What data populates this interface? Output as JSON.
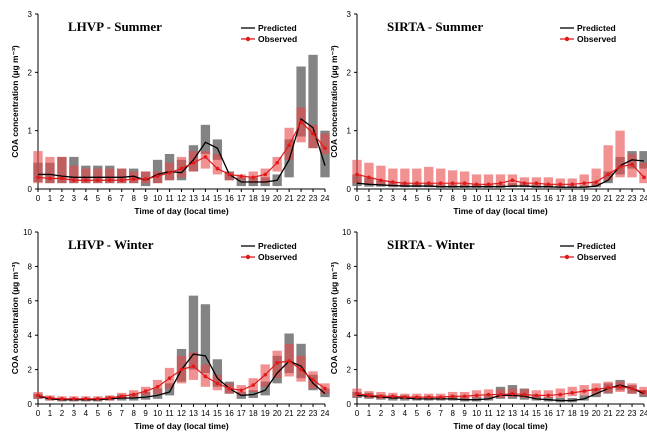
{
  "chart_data": [
    {
      "type": "line",
      "title": "LHVP - Summer",
      "xlabel": "Time of day (local time)",
      "ylabel": "COA concentration (µg m⁻³)",
      "x_ticks": [
        "0",
        "1",
        "2",
        "3",
        "4",
        "5",
        "6",
        "7",
        "8",
        "9",
        "10",
        "11",
        "12",
        "13",
        "14",
        "15",
        "16",
        "17",
        "18",
        "19",
        "20",
        "21",
        "22",
        "23",
        "24"
      ],
      "y_ticks": [
        "0",
        "1",
        "2",
        "3"
      ],
      "ylim": [
        0,
        3
      ],
      "xlim": [
        0,
        24
      ],
      "legend": [
        "Predicted",
        "Observed"
      ],
      "legend_position": "top-right",
      "series": [
        {
          "name": "Predicted",
          "color": "#000000",
          "values": [
            0.25,
            0.25,
            0.22,
            0.2,
            0.2,
            0.2,
            0.2,
            0.2,
            0.22,
            0.15,
            0.25,
            0.3,
            0.28,
            0.5,
            0.8,
            0.7,
            0.25,
            0.12,
            0.12,
            0.12,
            0.15,
            0.5,
            1.2,
            1.05,
            0.4
          ],
          "lower": [
            0.12,
            0.1,
            0.1,
            0.1,
            0.1,
            0.1,
            0.1,
            0.1,
            0.1,
            0.05,
            0.1,
            0.15,
            0.15,
            0.3,
            0.6,
            0.5,
            0.15,
            0.05,
            0.05,
            0.05,
            0.05,
            0.2,
            0.9,
            0.7,
            0.2
          ],
          "upper": [
            0.45,
            0.45,
            0.55,
            0.55,
            0.4,
            0.4,
            0.4,
            0.35,
            0.35,
            0.3,
            0.5,
            0.6,
            0.5,
            0.75,
            1.1,
            0.85,
            0.3,
            0.2,
            0.2,
            0.2,
            0.25,
            0.85,
            2.1,
            2.3,
            1.0
          ]
        },
        {
          "name": "Observed",
          "color": "#e0191b",
          "values": [
            0.2,
            0.18,
            0.18,
            0.15,
            0.15,
            0.15,
            0.15,
            0.15,
            0.17,
            0.17,
            0.22,
            0.28,
            0.35,
            0.45,
            0.55,
            0.35,
            0.25,
            0.22,
            0.2,
            0.25,
            0.45,
            0.75,
            1.15,
            0.95,
            0.7
          ],
          "lower": [
            0.1,
            0.1,
            0.1,
            0.1,
            0.1,
            0.1,
            0.1,
            0.1,
            0.1,
            0.1,
            0.1,
            0.15,
            0.2,
            0.3,
            0.35,
            0.25,
            0.15,
            0.15,
            0.1,
            0.1,
            0.3,
            0.5,
            0.8,
            0.7,
            0.6
          ],
          "upper": [
            0.65,
            0.55,
            0.55,
            0.4,
            0.35,
            0.35,
            0.35,
            0.35,
            0.3,
            0.3,
            0.3,
            0.45,
            0.55,
            0.65,
            0.65,
            0.6,
            0.3,
            0.25,
            0.3,
            0.35,
            0.55,
            1.05,
            1.4,
            1.1,
            0.95
          ]
        }
      ]
    },
    {
      "type": "line",
      "title": "SIRTA - Summer",
      "xlabel": "Time of day (local time)",
      "ylabel": "COA concentration (µg m⁻³)",
      "x_ticks": [
        "0",
        "1",
        "2",
        "3",
        "4",
        "5",
        "6",
        "7",
        "8",
        "9",
        "10",
        "11",
        "12",
        "13",
        "14",
        "15",
        "16",
        "17",
        "18",
        "19",
        "20",
        "21",
        "22",
        "23",
        "24"
      ],
      "y_ticks": [
        "0",
        "1",
        "2",
        "3"
      ],
      "ylim": [
        0,
        3
      ],
      "xlim": [
        0,
        24
      ],
      "legend": [
        "Predicted",
        "Observed"
      ],
      "legend_position": "top-right",
      "series": [
        {
          "name": "Predicted",
          "color": "#000000",
          "values": [
            0.1,
            0.08,
            0.07,
            0.06,
            0.05,
            0.05,
            0.05,
            0.04,
            0.04,
            0.04,
            0.04,
            0.04,
            0.04,
            0.05,
            0.05,
            0.04,
            0.04,
            0.03,
            0.03,
            0.03,
            0.05,
            0.15,
            0.4,
            0.5,
            0.48
          ],
          "lower": [
            0.05,
            0.04,
            0.04,
            0.03,
            0.03,
            0.03,
            0.03,
            0.02,
            0.02,
            0.02,
            0.02,
            0.02,
            0.02,
            0.03,
            0.03,
            0.02,
            0.02,
            0.02,
            0.02,
            0.02,
            0.03,
            0.1,
            0.25,
            0.35,
            0.35
          ],
          "upper": [
            0.25,
            0.2,
            0.15,
            0.12,
            0.1,
            0.1,
            0.1,
            0.08,
            0.08,
            0.08,
            0.08,
            0.08,
            0.08,
            0.1,
            0.1,
            0.08,
            0.08,
            0.06,
            0.06,
            0.06,
            0.1,
            0.3,
            0.55,
            0.65,
            0.65
          ]
        },
        {
          "name": "Observed",
          "color": "#e0191b",
          "values": [
            0.25,
            0.2,
            0.15,
            0.12,
            0.1,
            0.1,
            0.1,
            0.1,
            0.1,
            0.1,
            0.08,
            0.08,
            0.1,
            0.15,
            0.1,
            0.1,
            0.08,
            0.08,
            0.08,
            0.1,
            0.12,
            0.25,
            0.38,
            0.42,
            0.2
          ],
          "lower": [
            0.1,
            0.08,
            0.06,
            0.05,
            0.05,
            0.05,
            0.05,
            0.05,
            0.05,
            0.05,
            0.04,
            0.04,
            0.05,
            0.06,
            0.05,
            0.05,
            0.04,
            0.04,
            0.04,
            0.05,
            0.05,
            0.15,
            0.2,
            0.2,
            0.1
          ],
          "upper": [
            0.5,
            0.45,
            0.4,
            0.35,
            0.35,
            0.35,
            0.38,
            0.35,
            0.32,
            0.3,
            0.25,
            0.25,
            0.25,
            0.25,
            0.2,
            0.2,
            0.2,
            0.18,
            0.18,
            0.25,
            0.35,
            0.75,
            1.0,
            0.6,
            0.45
          ]
        }
      ]
    },
    {
      "type": "line",
      "title": "LHVP - Winter",
      "xlabel": "Time of day (local time)",
      "ylabel": "COA concentration (µg m⁻³)",
      "x_ticks": [
        "0",
        "1",
        "2",
        "3",
        "4",
        "5",
        "6",
        "7",
        "8",
        "9",
        "10",
        "11",
        "12",
        "13",
        "14",
        "15",
        "16",
        "17",
        "18",
        "19",
        "20",
        "21",
        "22",
        "23",
        "24"
      ],
      "y_ticks": [
        "0",
        "2",
        "4",
        "6",
        "8",
        "10"
      ],
      "ylim": [
        0,
        10
      ],
      "xlim": [
        0,
        24
      ],
      "legend": [
        "Predicted",
        "Observed"
      ],
      "legend_position": "top-right",
      "series": [
        {
          "name": "Predicted",
          "color": "#000000",
          "values": [
            0.45,
            0.3,
            0.25,
            0.25,
            0.25,
            0.25,
            0.3,
            0.35,
            0.35,
            0.4,
            0.5,
            0.7,
            2.0,
            2.9,
            2.8,
            1.5,
            0.9,
            0.5,
            0.55,
            0.8,
            1.8,
            2.5,
            2.2,
            1.2,
            0.6
          ],
          "lower": [
            0.3,
            0.2,
            0.15,
            0.15,
            0.15,
            0.15,
            0.2,
            0.2,
            0.2,
            0.25,
            0.3,
            0.5,
            1.3,
            2.0,
            1.8,
            1.0,
            0.6,
            0.3,
            0.35,
            0.5,
            1.2,
            1.8,
            1.5,
            0.8,
            0.4
          ],
          "upper": [
            0.6,
            0.4,
            0.35,
            0.35,
            0.35,
            0.35,
            0.45,
            0.55,
            0.6,
            0.7,
            0.9,
            1.2,
            3.2,
            6.3,
            5.8,
            2.6,
            1.3,
            0.7,
            0.8,
            1.3,
            2.8,
            4.1,
            3.5,
            1.7,
            0.9
          ]
        },
        {
          "name": "Observed",
          "color": "#e0191b",
          "values": [
            0.5,
            0.35,
            0.3,
            0.3,
            0.3,
            0.3,
            0.35,
            0.45,
            0.55,
            0.75,
            1.0,
            1.5,
            2.0,
            2.2,
            1.6,
            1.2,
            0.9,
            0.8,
            1.1,
            1.7,
            2.4,
            2.5,
            2.0,
            1.4,
            0.9
          ],
          "lower": [
            0.3,
            0.2,
            0.2,
            0.2,
            0.2,
            0.2,
            0.2,
            0.3,
            0.35,
            0.5,
            0.6,
            0.9,
            1.2,
            1.4,
            1.0,
            0.8,
            0.6,
            0.5,
            0.7,
            1.0,
            1.5,
            1.6,
            1.3,
            0.9,
            0.6
          ],
          "upper": [
            0.7,
            0.5,
            0.45,
            0.45,
            0.45,
            0.45,
            0.5,
            0.65,
            0.8,
            1.0,
            1.4,
            2.1,
            2.8,
            3.0,
            2.3,
            1.7,
            1.2,
            1.1,
            1.5,
            2.3,
            3.1,
            3.5,
            2.8,
            1.9,
            1.2
          ]
        }
      ]
    },
    {
      "type": "line",
      "title": "SIRTA - Winter",
      "xlabel": "Time of day (local time)",
      "ylabel": "COA concentration (µg m⁻³)",
      "x_ticks": [
        "0",
        "1",
        "2",
        "3",
        "4",
        "5",
        "6",
        "7",
        "8",
        "9",
        "10",
        "11",
        "12",
        "13",
        "14",
        "15",
        "16",
        "17",
        "18",
        "19",
        "20",
        "21",
        "22",
        "23",
        "24"
      ],
      "y_ticks": [
        "0",
        "2",
        "4",
        "6",
        "8",
        "10"
      ],
      "ylim": [
        0,
        10
      ],
      "xlim": [
        0,
        24
      ],
      "legend": [
        "Predicted",
        "Observed"
      ],
      "legend_position": "top-right",
      "series": [
        {
          "name": "Predicted",
          "color": "#000000",
          "values": [
            0.5,
            0.45,
            0.4,
            0.35,
            0.35,
            0.3,
            0.3,
            0.3,
            0.3,
            0.25,
            0.25,
            0.3,
            0.5,
            0.5,
            0.45,
            0.3,
            0.25,
            0.2,
            0.2,
            0.3,
            0.6,
            0.9,
            1.1,
            0.9,
            0.6
          ],
          "lower": [
            0.35,
            0.3,
            0.25,
            0.2,
            0.2,
            0.2,
            0.2,
            0.2,
            0.2,
            0.15,
            0.15,
            0.2,
            0.3,
            0.3,
            0.25,
            0.2,
            0.15,
            0.1,
            0.1,
            0.2,
            0.4,
            0.6,
            0.8,
            0.6,
            0.4
          ],
          "upper": [
            0.7,
            0.65,
            0.55,
            0.5,
            0.5,
            0.45,
            0.45,
            0.45,
            0.45,
            0.4,
            0.4,
            0.5,
            1.0,
            1.1,
            0.9,
            0.5,
            0.4,
            0.35,
            0.35,
            0.5,
            0.9,
            1.2,
            1.4,
            1.1,
            0.8
          ]
        },
        {
          "name": "Observed",
          "color": "#e0191b",
          "values": [
            0.6,
            0.5,
            0.45,
            0.45,
            0.4,
            0.4,
            0.4,
            0.4,
            0.45,
            0.45,
            0.5,
            0.55,
            0.55,
            0.6,
            0.55,
            0.5,
            0.5,
            0.55,
            0.65,
            0.75,
            0.85,
            0.95,
            1.0,
            0.9,
            0.7
          ],
          "lower": [
            0.4,
            0.35,
            0.3,
            0.3,
            0.3,
            0.3,
            0.3,
            0.3,
            0.3,
            0.3,
            0.35,
            0.35,
            0.35,
            0.4,
            0.35,
            0.35,
            0.35,
            0.35,
            0.45,
            0.5,
            0.55,
            0.65,
            0.7,
            0.6,
            0.5
          ],
          "upper": [
            0.9,
            0.75,
            0.7,
            0.65,
            0.6,
            0.6,
            0.6,
            0.6,
            0.7,
            0.7,
            0.8,
            0.85,
            0.85,
            0.9,
            0.85,
            0.8,
            0.8,
            0.9,
            1.0,
            1.1,
            1.2,
            1.3,
            1.3,
            1.2,
            1.0
          ]
        }
      ]
    }
  ]
}
